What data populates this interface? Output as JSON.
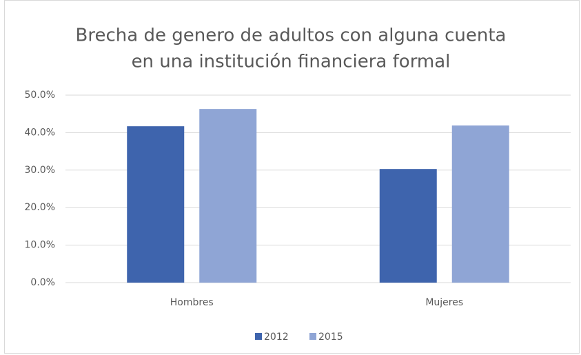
{
  "chart_data": {
    "type": "bar",
    "title": [
      "Brecha de genero de adultos con alguna cuenta",
      "en una institución financiera formal"
    ],
    "categories": [
      "Hombres",
      "Mujeres"
    ],
    "series": [
      {
        "name": "2012",
        "color": "#3e64ad",
        "values": [
          41.7,
          30.3
        ]
      },
      {
        "name": "2015",
        "color": "#8fa5d5",
        "values": [
          46.3,
          41.9
        ]
      }
    ],
    "ylim": [
      0,
      50
    ],
    "yticks": [
      {
        "value": 0,
        "label": "0.0%"
      },
      {
        "value": 10,
        "label": "10.0%"
      },
      {
        "value": 20,
        "label": "20.0%"
      },
      {
        "value": 30,
        "label": "30.0%"
      },
      {
        "value": 40,
        "label": "40.0%"
      },
      {
        "value": 50,
        "label": "50.0%"
      }
    ],
    "grid": true,
    "legend": "bottom"
  }
}
